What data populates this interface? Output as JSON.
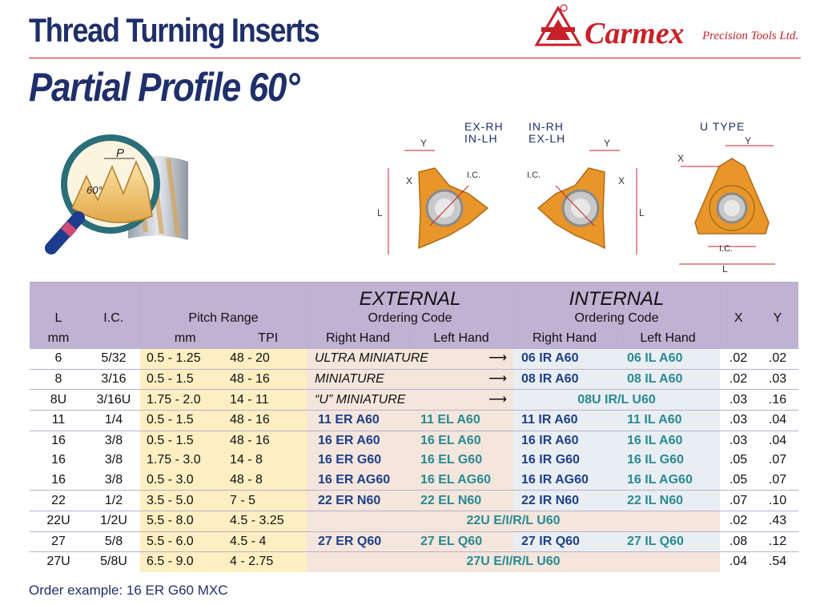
{
  "header": {
    "title_line1": "Thread Turning Inserts",
    "title_line2": "Partial Profile 60°",
    "brand_name": "Carmex",
    "brand_sub": "Precision Tools Ltd."
  },
  "diagram": {
    "magnifier_p": "P",
    "magnifier_angle": "60°",
    "label_ex_rh": "EX-RH",
    "label_in_lh": "IN-LH",
    "label_in_rh": "IN-RH",
    "label_ex_lh": "EX-LH",
    "label_u_type": "U TYPE",
    "dim_y": "Y",
    "dim_x": "X",
    "dim_l": "L",
    "dim_ic": "I.C."
  },
  "table": {
    "col_l": "L",
    "col_l_unit": "mm",
    "col_ic": "I.C.",
    "col_pitch": "Pitch Range",
    "col_pitch_mm": "mm",
    "col_pitch_tpi": "TPI",
    "external_title": "EXTERNAL",
    "internal_title": "INTERNAL",
    "ordering_code": "Ordering Code",
    "right_hand": "Right Hand",
    "left_hand": "Left Hand",
    "col_x": "X",
    "col_y": "Y",
    "rows": [
      {
        "l": "6",
        "ic": "5/32",
        "pmm": "0.5   - 1.25",
        "tpi": "48    - 20",
        "ext_span": "ULTRA MINIATURE",
        "ir": "06 IR A60",
        "il": "06 IL A60",
        "x": ".02",
        "y": ".02"
      },
      {
        "l": "8",
        "ic": "3/16",
        "pmm": "0.5   - 1.5",
        "tpi": "48    - 16",
        "ext_span": "MINIATURE",
        "ir": "08 IR A60",
        "il": "08 IL A60",
        "x": ".02",
        "y": ".03"
      },
      {
        "l": "8U",
        "ic": "3/16U",
        "pmm": "1.75 - 2.0",
        "tpi": "14    - 11",
        "ext_span": "“U” MINIATURE",
        "int_span": "08U IR/L U60",
        "x": ".03",
        "y": ".16"
      },
      {
        "l": "11",
        "ic": "1/4",
        "pmm": "0.5   - 1.5",
        "tpi": "48    - 16",
        "er": "11 ER A60",
        "el": "11 EL A60",
        "ir": "11 IR A60",
        "il": "11 IL A60",
        "x": ".03",
        "y": ".04"
      },
      {
        "l": "16",
        "ic": "3/8",
        "pmm": "0.5   - 1.5",
        "tpi": "48    - 16",
        "er": "16 ER A60",
        "el": "16 EL A60",
        "ir": "16 IR A60",
        "il": "16 IL A60",
        "x": ".03",
        "y": ".04"
      },
      {
        "l": "16",
        "ic": "3/8",
        "pmm": "1.75 - 3.0",
        "tpi": "14    - 8",
        "er": "16 ER G60",
        "el": "16 EL G60",
        "ir": "16 IR G60",
        "il": "16 IL G60",
        "x": ".05",
        "y": ".07"
      },
      {
        "l": "16",
        "ic": "3/8",
        "pmm": "0.5   - 3.0",
        "tpi": "48    - 8",
        "er": "16 ER AG60",
        "el": "16 EL AG60",
        "ir": "16 IR AG60",
        "il": "16 IL AG60",
        "x": ".05",
        "y": ".07"
      },
      {
        "l": "22",
        "ic": "1/2",
        "pmm": "3.5   - 5.0",
        "tpi": "7    - 5",
        "er": "22 ER N60",
        "el": "22 EL N60",
        "ir": "22 IR N60",
        "il": "22 IL N60",
        "x": ".07",
        "y": ".10"
      },
      {
        "l": "22U",
        "ic": "1/2U",
        "pmm": "5.5   - 8.0",
        "tpi": "4.5 - 3.25",
        "full_span": "22U E/I/R/L U60",
        "x": ".02",
        "y": ".43"
      },
      {
        "l": "27",
        "ic": "5/8",
        "pmm": "5.5   - 6.0",
        "tpi": "4.5 - 4",
        "er": "27 ER Q60",
        "el": "27 EL Q60",
        "ir": "27 IR Q60",
        "il": "27 IL Q60",
        "x": ".08",
        "y": ".12"
      },
      {
        "l": "27U",
        "ic": "5/8U",
        "pmm": "6.5   - 9.0",
        "tpi": "4    - 2.75",
        "full_span": "27U E/I/R/L U60",
        "x": ".04",
        "y": ".54"
      }
    ]
  },
  "footer": {
    "order_example": "Order example: 16 ER G60 MXC"
  },
  "colors": {
    "title_blue": "#1f2f6b",
    "brand_red": "#c8202a",
    "header_purple": "#bfb2d3",
    "pitch_yellow": "#fdefc2",
    "insert_orange": "#e8962a",
    "code_navy": "#1f3f8a",
    "code_teal": "#2a8a93"
  }
}
